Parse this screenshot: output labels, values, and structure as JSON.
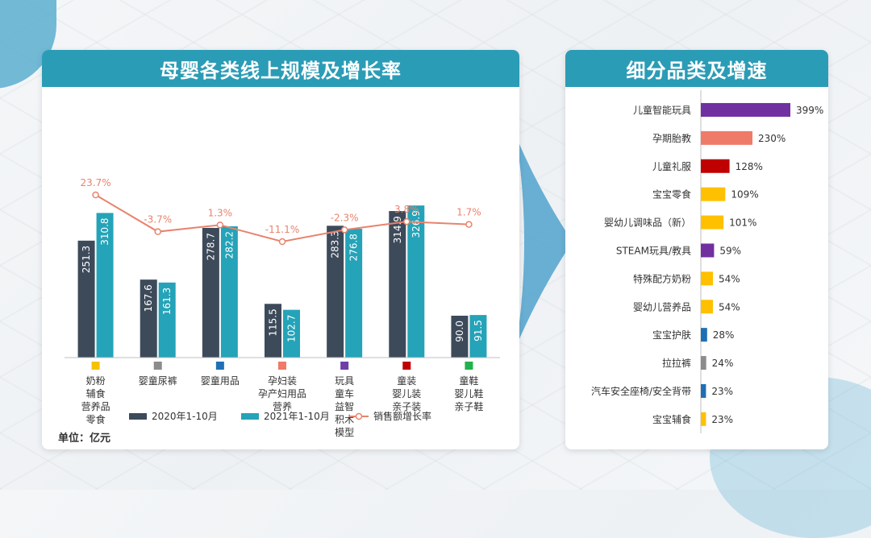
{
  "left_panel": {
    "title": "母婴各类线上规模及增长率",
    "unit_label": "单位：亿元"
  },
  "right_panel": {
    "title": "细分品类及增速"
  },
  "colors": {
    "header": "#2b9cb6",
    "series_2020": "#3d4a5a",
    "series_2021": "#25a3b8",
    "growth_line": "#e8836d"
  },
  "chart_data": [
    {
      "type": "bar",
      "categories": [
        {
          "lines": [
            "奶粉",
            "辅食",
            "营养品",
            "零食"
          ],
          "color": "#f5c200"
        },
        {
          "lines": [
            "婴童尿裤"
          ],
          "color": "#8c8c8c"
        },
        {
          "lines": [
            "婴童用品"
          ],
          "color": "#1f6fb5"
        },
        {
          "lines": [
            "孕妇装",
            "孕产妇用品",
            "营养"
          ],
          "color": "#ef7a67"
        },
        {
          "lines": [
            "玩具",
            "童车",
            "益智",
            "积木",
            "模型"
          ],
          "color": "#6d3fa7"
        },
        {
          "lines": [
            "童装",
            "婴儿装",
            "亲子装"
          ],
          "color": "#c00000"
        },
        {
          "lines": [
            "童鞋",
            "婴儿鞋",
            "亲子鞋"
          ],
          "color": "#22b14c"
        }
      ],
      "series": [
        {
          "name": "2020年1-10月",
          "values": [
            251.3,
            167.6,
            278.7,
            115.5,
            283.3,
            314.9,
            90.0
          ],
          "labels": [
            "251.3",
            "167.6",
            "278.7",
            "115.5",
            "283.3",
            "314.9",
            "90.0"
          ]
        },
        {
          "name": "2021年1-10月",
          "values": [
            310.8,
            161.3,
            282.2,
            102.7,
            276.8,
            326.9,
            91.5
          ],
          "labels": [
            "310.8",
            "161.3",
            "282.2",
            "102.7",
            "276.8",
            "326.9",
            "91.5"
          ]
        }
      ],
      "line_series": {
        "name": "销售额增长率",
        "values": [
          23.7,
          -3.7,
          1.3,
          -11.1,
          -2.3,
          3.8,
          1.7
        ],
        "labels": [
          "23.7%",
          "-3.7%",
          "1.3%",
          "-11.1%",
          "-2.3%",
          "3.8%",
          "1.7%"
        ]
      },
      "ylim": [
        0,
        360
      ]
    },
    {
      "type": "bar",
      "orientation": "horizontal",
      "categories": [
        "儿童智能玩具",
        "孕期胎教",
        "儿童礼服",
        "宝宝零食",
        "婴幼儿调味品（新）",
        "STEAM玩具/教具",
        "特殊配方奶粉",
        "婴幼儿营养品",
        "宝宝护肤",
        "拉拉裤",
        "汽车安全座椅/安全背带",
        "宝宝辅食"
      ],
      "values": [
        399,
        230,
        128,
        109,
        101,
        59,
        54,
        54,
        28,
        24,
        23,
        23
      ],
      "labels": [
        "399%",
        "230%",
        "128%",
        "109%",
        "101%",
        "59%",
        "54%",
        "54%",
        "28%",
        "24%",
        "23%",
        "23%"
      ],
      "colors": [
        "#7030a0",
        "#ef7a67",
        "#c00000",
        "#ffc000",
        "#ffc000",
        "#7030a0",
        "#ffc000",
        "#ffc000",
        "#1f6fb5",
        "#8c8c8c",
        "#1f6fb5",
        "#ffc000"
      ],
      "xlim": [
        0,
        399
      ]
    }
  ]
}
